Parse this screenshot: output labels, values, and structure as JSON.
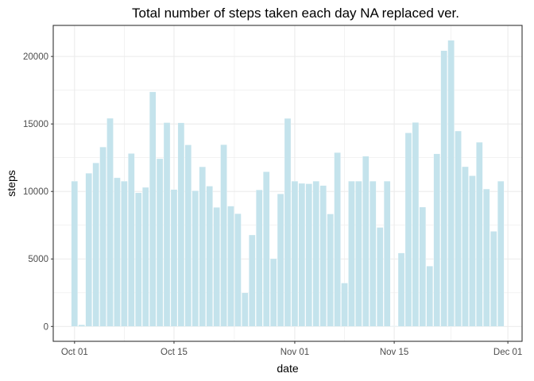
{
  "chart_data": {
    "type": "bar",
    "title": "Total number of steps taken each day NA replaced ver.",
    "xlabel": "date",
    "ylabel": "steps",
    "x": [
      "2012-10-01",
      "2012-10-02",
      "2012-10-03",
      "2012-10-04",
      "2012-10-05",
      "2012-10-06",
      "2012-10-07",
      "2012-10-08",
      "2012-10-09",
      "2012-10-10",
      "2012-10-11",
      "2012-10-12",
      "2012-10-13",
      "2012-10-14",
      "2012-10-15",
      "2012-10-16",
      "2012-10-17",
      "2012-10-18",
      "2012-10-19",
      "2012-10-20",
      "2012-10-21",
      "2012-10-22",
      "2012-10-23",
      "2012-10-24",
      "2012-10-25",
      "2012-10-26",
      "2012-10-27",
      "2012-10-28",
      "2012-10-29",
      "2012-10-30",
      "2012-10-31",
      "2012-11-01",
      "2012-11-02",
      "2012-11-03",
      "2012-11-04",
      "2012-11-05",
      "2012-11-06",
      "2012-11-07",
      "2012-11-08",
      "2012-11-09",
      "2012-11-10",
      "2012-11-11",
      "2012-11-12",
      "2012-11-13",
      "2012-11-14",
      "2012-11-15",
      "2012-11-16",
      "2012-11-17",
      "2012-11-18",
      "2012-11-19",
      "2012-11-20",
      "2012-11-21",
      "2012-11-22",
      "2012-11-23",
      "2012-11-24",
      "2012-11-25",
      "2012-11-26",
      "2012-11-27",
      "2012-11-28",
      "2012-11-29",
      "2012-11-30"
    ],
    "values": [
      10766,
      126,
      11352,
      12116,
      13294,
      15420,
      11015,
      10766,
      12811,
      9900,
      10304,
      17382,
      12426,
      15098,
      10139,
      15084,
      13452,
      10056,
      11829,
      10395,
      8821,
      13460,
      8918,
      8355,
      2492,
      6778,
      10119,
      11458,
      5018,
      9819,
      15414,
      10766,
      10600,
      10571,
      10766,
      10439,
      8334,
      12883,
      3219,
      10766,
      10766,
      12608,
      10765,
      7336,
      10766,
      41,
      5441,
      14339,
      15110,
      8841,
      4472,
      12787,
      20427,
      21194,
      14478,
      11834,
      11162,
      13646,
      10183,
      7047,
      10766
    ],
    "xticks": [
      {
        "date": "2012-10-01",
        "label": "Oct 01"
      },
      {
        "date": "2012-10-15",
        "label": "Oct 15"
      },
      {
        "date": "2012-11-01",
        "label": "Nov 01"
      },
      {
        "date": "2012-11-15",
        "label": "Nov 15"
      },
      {
        "date": "2012-12-01",
        "label": "Dec 01"
      }
    ],
    "yticks": [
      0,
      5000,
      10000,
      15000,
      20000
    ],
    "xlim": [
      "2012-09-28",
      "2012-12-03"
    ],
    "ylim": [
      -1100,
      22300
    ],
    "grid": true,
    "legend": "none",
    "colors": {
      "bar_fill": "#c4e3ec",
      "bar_edge": "#ffffff",
      "grid": "#ebebeb",
      "panel_border": "#333333",
      "tick_label": "#4d4d4d",
      "text": "#000000"
    }
  }
}
